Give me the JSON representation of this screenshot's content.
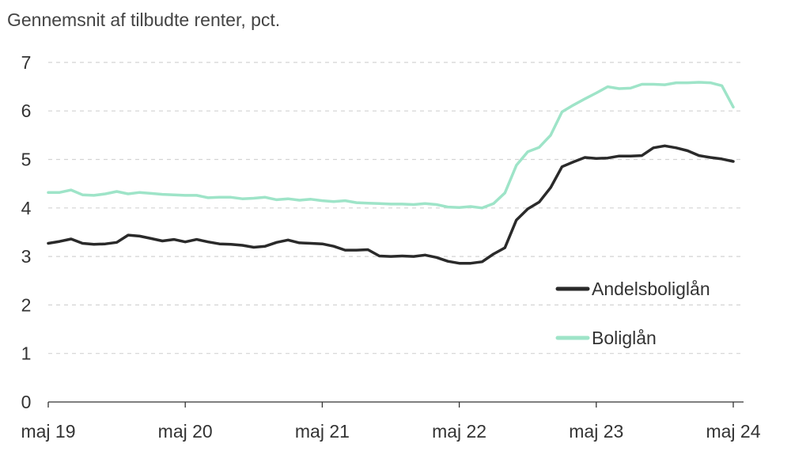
{
  "chart_data": {
    "type": "line",
    "title": "Gennemsnit af tilbudte renter, pct.",
    "xlabel": "",
    "ylabel": "",
    "ylim": [
      0,
      7
    ],
    "yticks": [
      0,
      1,
      2,
      3,
      4,
      5,
      6,
      7
    ],
    "xlim": [
      "2019-05",
      "2024-05"
    ],
    "xticks": [
      {
        "x": "2019-05",
        "label": "maj 19"
      },
      {
        "x": "2020-05",
        "label": "maj 20"
      },
      {
        "x": "2021-05",
        "label": "maj 21"
      },
      {
        "x": "2022-05",
        "label": "maj 22"
      },
      {
        "x": "2023-05",
        "label": "maj 23"
      },
      {
        "x": "2024-05",
        "label": "maj 24"
      }
    ],
    "grid": "horizontal dashed",
    "legend_position": "right",
    "x": [
      "2019-05",
      "2019-06",
      "2019-07",
      "2019-08",
      "2019-09",
      "2019-10",
      "2019-11",
      "2019-12",
      "2020-01",
      "2020-02",
      "2020-03",
      "2020-04",
      "2020-05",
      "2020-06",
      "2020-07",
      "2020-08",
      "2020-09",
      "2020-10",
      "2020-11",
      "2020-12",
      "2021-01",
      "2021-02",
      "2021-03",
      "2021-04",
      "2021-05",
      "2021-06",
      "2021-07",
      "2021-08",
      "2021-09",
      "2021-10",
      "2021-11",
      "2021-12",
      "2022-01",
      "2022-02",
      "2022-03",
      "2022-04",
      "2022-05",
      "2022-06",
      "2022-07",
      "2022-08",
      "2022-09",
      "2022-10",
      "2022-11",
      "2022-12",
      "2023-01",
      "2023-02",
      "2023-03",
      "2023-04",
      "2023-05",
      "2023-06",
      "2023-07",
      "2023-08",
      "2023-09",
      "2023-10",
      "2023-11",
      "2023-12",
      "2024-01",
      "2024-02",
      "2024-03",
      "2024-04",
      "2024-05"
    ],
    "series": [
      {
        "name": "Andelsboliglån",
        "color": "#2a2a2a",
        "values": [
          3.27,
          3.31,
          3.36,
          3.27,
          3.25,
          3.26,
          3.29,
          3.44,
          3.42,
          3.37,
          3.32,
          3.35,
          3.3,
          3.35,
          3.3,
          3.26,
          3.25,
          3.23,
          3.19,
          3.21,
          3.29,
          3.34,
          3.28,
          3.27,
          3.26,
          3.21,
          3.13,
          3.13,
          3.14,
          3.01,
          3.0,
          3.01,
          3.0,
          3.03,
          2.98,
          2.9,
          2.86,
          2.86,
          2.89,
          3.05,
          3.18,
          3.75,
          3.98,
          4.12,
          4.42,
          4.85,
          4.95,
          5.04,
          5.02,
          5.03,
          5.07,
          5.07,
          5.08,
          5.24,
          5.28,
          5.24,
          5.18,
          5.08,
          5.04,
          5.01,
          4.96
        ]
      },
      {
        "name": "Boliglån",
        "color": "#9ee4c8",
        "values": [
          4.32,
          4.32,
          4.37,
          4.27,
          4.26,
          4.29,
          4.34,
          4.29,
          4.32,
          4.3,
          4.28,
          4.27,
          4.26,
          4.26,
          4.21,
          4.22,
          4.22,
          4.19,
          4.2,
          4.22,
          4.17,
          4.19,
          4.16,
          4.18,
          4.15,
          4.13,
          4.15,
          4.11,
          4.1,
          4.09,
          4.08,
          4.08,
          4.07,
          4.09,
          4.07,
          4.02,
          4.01,
          4.03,
          4.0,
          4.09,
          4.31,
          4.88,
          5.16,
          5.25,
          5.5,
          5.98,
          6.12,
          6.25,
          6.37,
          6.5,
          6.46,
          6.47,
          6.55,
          6.55,
          6.54,
          6.58,
          6.58,
          6.59,
          6.58,
          6.52,
          6.08
        ]
      }
    ]
  }
}
